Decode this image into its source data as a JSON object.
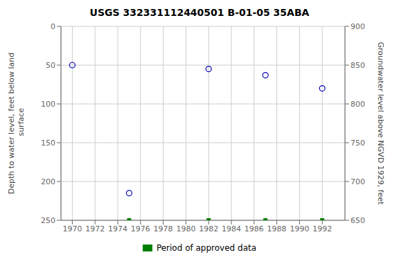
{
  "chart_data": {
    "type": "scatter",
    "title": "USGS 332331112440501 B-01-05 35ABA",
    "y_label": "Depth to water level, feet below land\n surface",
    "y2_label": "Groundwater level above NGVD 1929, feet",
    "series": [
      {
        "x": [
          1970,
          1975,
          1982,
          1987,
          1992
        ],
        "values": [
          50,
          215,
          55,
          63,
          80
        ],
        "color": "#0000bb",
        "marker": "circle"
      },
      {
        "name": "Period of approved data",
        "x": [
          1975,
          1982,
          1987,
          1992
        ],
        "values": [
          250,
          250,
          250,
          250
        ],
        "color": "#008000",
        "marker": "square"
      }
    ],
    "xlim": [
      1969,
      1994
    ],
    "xticks": [
      1970,
      1972,
      1974,
      1976,
      1978,
      1980,
      1982,
      1984,
      1986,
      1988,
      1990,
      1992
    ],
    "ylim": [
      250,
      0
    ],
    "yticks": [
      0,
      50,
      100,
      150,
      200,
      250
    ],
    "y2lim": [
      650,
      900
    ],
    "y2ticks": [
      900,
      850,
      800,
      750,
      700,
      650
    ],
    "grid": true,
    "legend": "bottom"
  }
}
